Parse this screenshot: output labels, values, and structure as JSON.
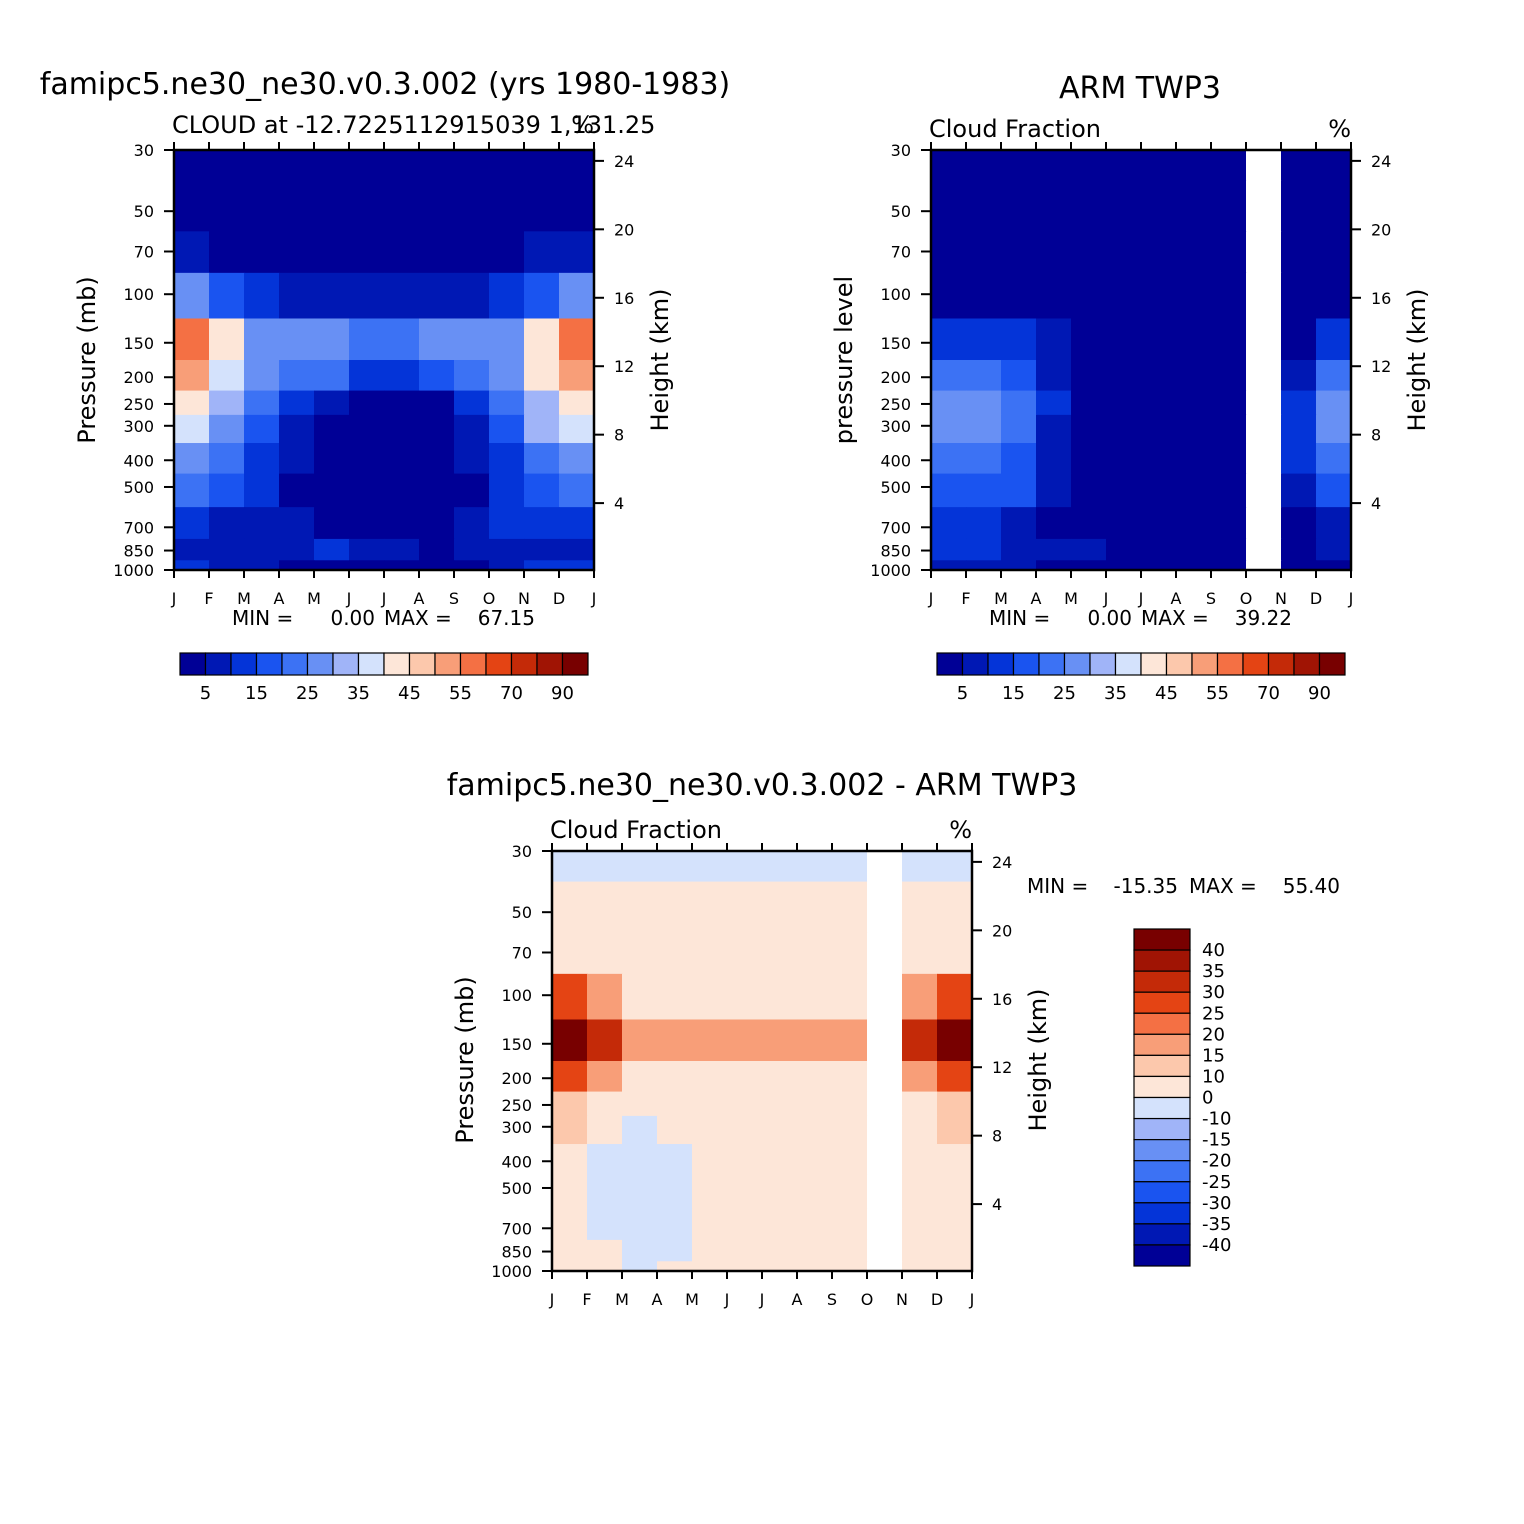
{
  "palettes": {
    "seq": [
      "#000096",
      "#0018b4",
      "#0434d8",
      "#1a54f0",
      "#3c72f4",
      "#6890f4",
      "#a0b4f8",
      "#d4e2fc",
      "#fde6d8",
      "#fcc8ac",
      "#f89e78",
      "#f47044",
      "#e44414",
      "#c42a08",
      "#a01404",
      "#780000"
    ],
    "diff": [
      "#000096",
      "#0018b4",
      "#0434d8",
      "#1a54f0",
      "#3c72f4",
      "#6890f4",
      "#a0b4f8",
      "#d4e2fc",
      "#fde6d8",
      "#fcc8ac",
      "#f89e78",
      "#f47044",
      "#e44414",
      "#c42a08",
      "#a01404",
      "#780000"
    ]
  },
  "chart_data": [
    {
      "id": "p1",
      "type": "heatmap",
      "title": "famipc5.ne30_ne30.v0.3.002 (yrs 1980-1983)",
      "subtitle": "CLOUD at -12.7225112915039 1,131.25",
      "units": "%",
      "ylabel": "Pressure (mb)",
      "ylabel_right": "Height (km)",
      "xticks": [
        "J",
        "F",
        "M",
        "A",
        "M",
        "J",
        "J",
        "A",
        "S",
        "O",
        "N",
        "D",
        "J"
      ],
      "yticks": [
        "30",
        "50",
        "70",
        "100",
        "150",
        "200",
        "250",
        "300",
        "400",
        "500",
        "700",
        "850",
        "1000"
      ],
      "yticks_right": [
        "24",
        "20",
        "16",
        "12",
        "8",
        "4"
      ],
      "stats": {
        "min_label": "MIN =",
        "min": "0.00",
        "max_label": "MAX =",
        "max": "67.15"
      },
      "colorbar_labels": [
        "5",
        "15",
        "25",
        "35",
        "45",
        "55",
        "70",
        "90"
      ],
      "levels": [
        5,
        10,
        15,
        20,
        25,
        30,
        35,
        40,
        45,
        50,
        55,
        60,
        70,
        80,
        90
      ],
      "missing_months": [],
      "pressure_levels": [
        30,
        50,
        70,
        100,
        150,
        200,
        250,
        300,
        400,
        500,
        700,
        850,
        1000
      ],
      "values": [
        [
          2,
          2,
          2,
          2,
          2,
          2,
          2,
          2,
          2,
          2,
          2,
          2,
          2
        ],
        [
          2,
          2,
          2,
          2,
          2,
          2,
          2,
          2,
          2,
          2,
          2,
          2,
          2
        ],
        [
          8,
          4,
          3,
          2,
          2,
          2,
          2,
          2,
          2,
          3,
          4,
          6,
          8
        ],
        [
          30,
          22,
          12,
          9,
          6,
          6,
          8,
          6,
          6,
          9,
          14,
          24,
          30
        ],
        [
          62,
          52,
          30,
          22,
          34,
          22,
          24,
          24,
          28,
          22,
          32,
          52,
          62
        ],
        [
          60,
          48,
          30,
          20,
          22,
          18,
          10,
          16,
          18,
          22,
          32,
          48,
          60
        ],
        [
          44,
          40,
          26,
          14,
          10,
          4,
          4,
          4,
          4,
          16,
          30,
          38,
          44
        ],
        [
          40,
          34,
          20,
          10,
          4,
          2,
          2,
          2,
          2,
          12,
          26,
          34,
          40
        ],
        [
          30,
          26,
          16,
          8,
          2,
          2,
          2,
          2,
          2,
          8,
          20,
          26,
          30
        ],
        [
          24,
          20,
          14,
          6,
          2,
          2,
          2,
          2,
          2,
          6,
          16,
          20,
          24
        ],
        [
          12,
          10,
          8,
          6,
          4,
          2,
          2,
          2,
          2,
          8,
          12,
          12,
          12
        ],
        [
          8,
          6,
          8,
          10,
          8,
          12,
          6,
          4,
          4,
          8,
          10,
          8,
          8
        ],
        [
          14,
          10,
          6,
          4,
          4,
          4,
          4,
          4,
          4,
          4,
          10,
          10,
          14
        ]
      ]
    },
    {
      "id": "p2",
      "type": "heatmap",
      "title": "ARM TWP3",
      "subtitle": "Cloud Fraction",
      "units": "%",
      "ylabel": "pressure level",
      "ylabel_right": "Height (km)",
      "xticks": [
        "J",
        "F",
        "M",
        "A",
        "M",
        "J",
        "J",
        "A",
        "S",
        "O",
        "N",
        "D",
        "J"
      ],
      "yticks": [
        "30",
        "50",
        "70",
        "100",
        "150",
        "200",
        "250",
        "300",
        "400",
        "500",
        "700",
        "850",
        "1000"
      ],
      "yticks_right": [
        "24",
        "20",
        "16",
        "12",
        "8",
        "4"
      ],
      "stats": {
        "min_label": "MIN =",
        "min": "0.00",
        "max_label": "MAX =",
        "max": "39.22"
      },
      "colorbar_labels": [
        "5",
        "15",
        "25",
        "35",
        "45",
        "55",
        "70",
        "90"
      ],
      "levels": [
        5,
        10,
        15,
        20,
        25,
        30,
        35,
        40,
        45,
        50,
        55,
        60,
        70,
        80,
        90
      ],
      "missing_months": [
        9
      ],
      "pressure_levels": [
        30,
        50,
        70,
        100,
        150,
        200,
        250,
        300,
        400,
        500,
        700,
        850,
        1000
      ],
      "values": [
        [
          0,
          0,
          0,
          0,
          0,
          0,
          0,
          0,
          0,
          0,
          0,
          0,
          0
        ],
        [
          0,
          0,
          0,
          0,
          0,
          0,
          0,
          0,
          0,
          0,
          0,
          0,
          0
        ],
        [
          0,
          0,
          0,
          0,
          0,
          0,
          0,
          0,
          0,
          0,
          0,
          0,
          0
        ],
        [
          2,
          2,
          4,
          2,
          0,
          0,
          0,
          0,
          0,
          0,
          0,
          2,
          2
        ],
        [
          14,
          10,
          12,
          8,
          4,
          0,
          0,
          0,
          0,
          0,
          0,
          8,
          14
        ],
        [
          28,
          18,
          24,
          14,
          4,
          0,
          0,
          0,
          0,
          0,
          0,
          18,
          28
        ],
        [
          34,
          22,
          30,
          16,
          4,
          0,
          0,
          0,
          0,
          0,
          0,
          24,
          34
        ],
        [
          32,
          22,
          30,
          14,
          4,
          0,
          0,
          0,
          0,
          0,
          0,
          24,
          32
        ],
        [
          26,
          18,
          26,
          10,
          4,
          0,
          0,
          0,
          0,
          0,
          0,
          20,
          26
        ],
        [
          22,
          16,
          22,
          8,
          4,
          0,
          0,
          0,
          0,
          0,
          0,
          16,
          22
        ],
        [
          10,
          14,
          12,
          6,
          2,
          0,
          0,
          0,
          0,
          0,
          0,
          8,
          10
        ],
        [
          8,
          12,
          10,
          8,
          6,
          4,
          0,
          0,
          0,
          0,
          0,
          6,
          8
        ],
        [
          4,
          6,
          6,
          4,
          2,
          0,
          0,
          0,
          0,
          0,
          0,
          4,
          4
        ]
      ]
    },
    {
      "id": "p3",
      "type": "heatmap",
      "title": "famipc5.ne30_ne30.v0.3.002 - ARM TWP3",
      "subtitle": "Cloud Fraction",
      "units": "%",
      "ylabel": "Pressure (mb)",
      "ylabel_right": "Height (km)",
      "xticks": [
        "J",
        "F",
        "M",
        "A",
        "M",
        "J",
        "J",
        "A",
        "S",
        "O",
        "N",
        "D",
        "J"
      ],
      "yticks": [
        "30",
        "50",
        "70",
        "100",
        "150",
        "200",
        "250",
        "300",
        "400",
        "500",
        "700",
        "850",
        "1000"
      ],
      "yticks_right": [
        "24",
        "20",
        "16",
        "12",
        "8",
        "4"
      ],
      "stats": {
        "min_label": "MIN =",
        "min": "-15.35",
        "max_label": "MAX =",
        "max": "55.40"
      },
      "colorbar_labels": [
        "40",
        "35",
        "30",
        "25",
        "20",
        "15",
        "10",
        "0",
        "-10",
        "-15",
        "-20",
        "-25",
        "-30",
        "-35",
        "-40"
      ],
      "levels": [
        -40,
        -35,
        -30,
        -25,
        -20,
        -15,
        -10,
        0,
        10,
        15,
        20,
        25,
        30,
        35,
        40
      ],
      "missing_months": [
        9
      ],
      "pressure_levels": [
        30,
        50,
        70,
        100,
        150,
        200,
        250,
        300,
        400,
        500,
        700,
        850,
        1000
      ],
      "values": [
        [
          -2,
          -2,
          -2,
          -2,
          -2,
          -2,
          -2,
          -2,
          -2,
          -2,
          -2,
          -2,
          -2
        ],
        [
          2,
          2,
          2,
          2,
          2,
          2,
          2,
          2,
          2,
          2,
          2,
          2,
          2
        ],
        [
          6,
          4,
          4,
          4,
          4,
          4,
          4,
          4,
          4,
          4,
          4,
          4,
          6
        ],
        [
          30,
          20,
          10,
          8,
          6,
          6,
          8,
          6,
          6,
          6,
          8,
          24,
          30
        ],
        [
          50,
          40,
          20,
          14,
          22,
          14,
          18,
          16,
          22,
          16,
          24,
          40,
          50
        ],
        [
          30,
          24,
          12,
          6,
          12,
          4,
          8,
          6,
          4,
          6,
          12,
          24,
          30
        ],
        [
          12,
          14,
          4,
          2,
          2,
          2,
          2,
          2,
          2,
          2,
          4,
          12,
          12
        ],
        [
          10,
          10,
          -4,
          -2,
          2,
          2,
          2,
          2,
          2,
          2,
          4,
          10,
          10
        ],
        [
          4,
          4,
          -12,
          -6,
          2,
          2,
          2,
          2,
          2,
          2,
          2,
          4,
          4
        ],
        [
          4,
          4,
          -12,
          -4,
          -2,
          2,
          2,
          2,
          2,
          2,
          2,
          4,
          4
        ],
        [
          2,
          2,
          -6,
          -2,
          -2,
          2,
          2,
          -2,
          2,
          2,
          2,
          2,
          2
        ],
        [
          2,
          2,
          -2,
          -2,
          -2,
          2,
          2,
          2,
          2,
          2,
          2,
          2,
          2
        ],
        [
          4,
          2,
          -2,
          -2,
          2,
          2,
          2,
          2,
          -2,
          2,
          2,
          4,
          4
        ]
      ]
    }
  ]
}
